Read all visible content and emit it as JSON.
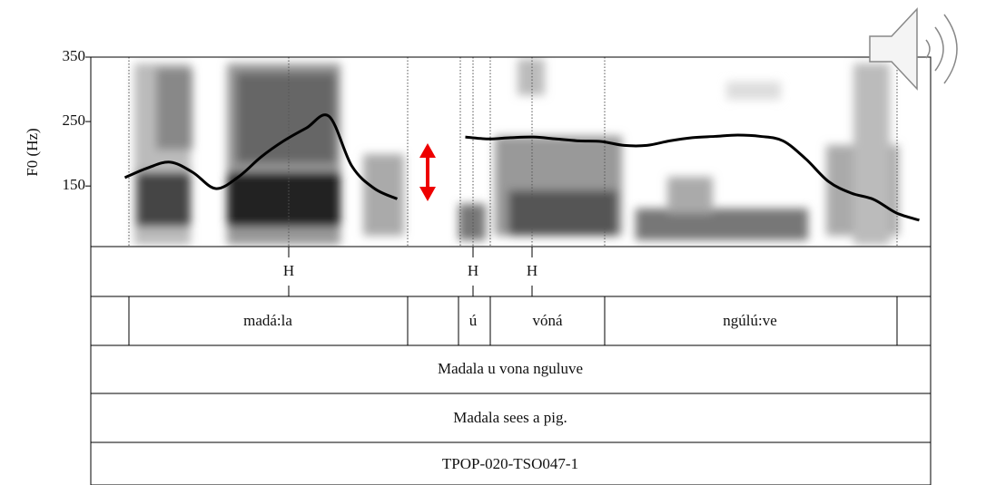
{
  "chart_data": {
    "type": "line",
    "y_label": "F0 (Hz)",
    "categories": [
      null,
      null,
      null,
      null,
      null,
      null,
      null,
      null,
      null,
      null,
      null,
      null,
      null,
      null,
      null,
      null,
      null,
      null,
      null,
      null,
      null,
      null,
      null,
      null,
      null,
      null,
      null,
      null,
      null,
      null,
      null,
      null,
      null,
      null,
      null,
      null,
      null
    ],
    "series": [
      {
        "color": "#000000",
        "values": [
          null,
          163,
          178,
          187,
          171,
          146,
          164,
          195,
          220,
          240,
          258,
          181,
          146,
          130,
          null,
          null,
          226,
          223,
          225,
          226,
          223,
          220,
          219,
          213,
          213,
          220,
          225,
          227,
          229,
          227,
          220,
          192,
          157,
          139,
          129,
          108,
          97
        ]
      }
    ],
    "ylim": [
      56,
      350
    ],
    "yticks": [
      150,
      250,
      350
    ]
  },
  "annotation": {
    "tones": [
      "H",
      "H",
      "H"
    ],
    "words": [
      "madá:la",
      "ú",
      "vóná",
      "ngúlú:ve"
    ],
    "sentence": "Madala u vona nguluve",
    "translation": "Madala sees a pig.",
    "file_id": "TPOP-020-TSO047-1"
  }
}
